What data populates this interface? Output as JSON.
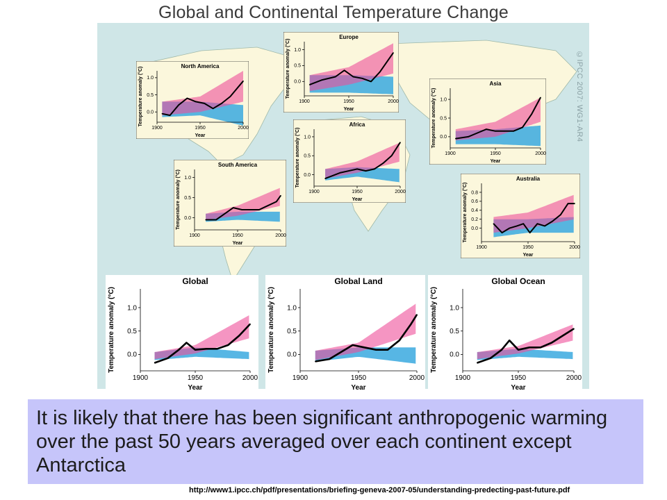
{
  "page": {
    "title": "Global and Continental Temperature Change",
    "credit": "©IPCC 2007: WG1-AR4",
    "statement": "It is likely that there has been significant anthropogenic warming over the past 50 years averaged over each continent except Antarctica",
    "source_url": "http://www1.ipcc.ch/pdf/presentations/briefing-geneva-2007-05/understanding-predecting-past-future.pdf"
  },
  "colors": {
    "map_background": "#cfe6e7",
    "land": "#fbf7dc",
    "natural_forcing_band": "#3aa9df",
    "combined_forcing_band": "#ee4f9a",
    "overlap_band": "#8a5fb5",
    "observations": "#000000",
    "statement_background": "#c6c5fa"
  },
  "chart_data": [
    {
      "id": "north_america",
      "type": "line",
      "title": "North America",
      "xlabel": "Year",
      "ylabel": "Temperature anomaly (°C)",
      "xlim": [
        1900,
        2000
      ],
      "ylim": [
        -0.3,
        1.2
      ],
      "xticks": [
        1900,
        1950,
        2000
      ],
      "yticks": [
        0.0,
        0.5,
        1.0
      ],
      "series": [
        {
          "x": [
            1906,
            1915,
            1925,
            1935,
            1945,
            1955,
            1965,
            1975,
            1985,
            1995,
            2000
          ],
          "y": [
            -0.05,
            -0.1,
            0.2,
            0.4,
            0.3,
            0.25,
            0.1,
            0.25,
            0.45,
            0.75,
            0.9
          ]
        }
      ],
      "bands": {
        "natural": {
          "x": [
            1906,
            1950,
            2000
          ],
          "lo": [
            -0.15,
            -0.1,
            -0.4
          ],
          "hi": [
            0.3,
            0.3,
            0.2
          ]
        },
        "combined": {
          "x": [
            1906,
            1950,
            2000
          ],
          "lo": [
            -0.1,
            0.0,
            0.3
          ],
          "hi": [
            0.3,
            0.45,
            1.2
          ]
        }
      }
    },
    {
      "id": "europe",
      "type": "line",
      "title": "Europe",
      "xlabel": "Year",
      "ylabel": "Temperature anomaly (°C)",
      "xlim": [
        1900,
        2000
      ],
      "ylim": [
        -0.45,
        1.25
      ],
      "xticks": [
        1900,
        1950,
        2000
      ],
      "yticks": [
        0.0,
        0.5,
        1.0
      ],
      "series": [
        {
          "x": [
            1906,
            1920,
            1935,
            1945,
            1955,
            1965,
            1975,
            1985,
            1995,
            2000
          ],
          "y": [
            -0.1,
            0.05,
            0.15,
            0.35,
            0.15,
            0.1,
            0.0,
            0.3,
            0.7,
            0.9
          ]
        }
      ],
      "bands": {
        "natural": {
          "x": [
            1906,
            1950,
            2000
          ],
          "lo": [
            -0.35,
            -0.35,
            -0.4
          ],
          "hi": [
            0.2,
            0.2,
            0.15
          ]
        },
        "combined": {
          "x": [
            1906,
            1950,
            2000
          ],
          "lo": [
            -0.3,
            -0.1,
            0.25
          ],
          "hi": [
            0.2,
            0.45,
            1.2
          ]
        }
      }
    },
    {
      "id": "asia",
      "type": "line",
      "title": "Asia",
      "xlabel": "Year",
      "ylabel": "Temperature anomaly (°C)",
      "xlim": [
        1900,
        2000
      ],
      "ylim": [
        -0.3,
        1.3
      ],
      "xticks": [
        1900,
        1950,
        2000
      ],
      "yticks": [
        0.0,
        0.5,
        1.0
      ],
      "series": [
        {
          "x": [
            1906,
            1920,
            1930,
            1940,
            1950,
            1960,
            1970,
            1980,
            1990,
            2000
          ],
          "y": [
            -0.05,
            0.0,
            0.1,
            0.2,
            0.15,
            0.15,
            0.15,
            0.25,
            0.6,
            1.05
          ]
        }
      ],
      "bands": {
        "natural": {
          "x": [
            1906,
            1950,
            2000
          ],
          "lo": [
            -0.2,
            -0.2,
            -0.25
          ],
          "hi": [
            0.15,
            0.2,
            0.3
          ]
        },
        "combined": {
          "x": [
            1906,
            1950,
            2000
          ],
          "lo": [
            -0.1,
            0.0,
            0.4
          ],
          "hi": [
            0.2,
            0.4,
            1.05
          ]
        }
      }
    },
    {
      "id": "africa",
      "type": "line",
      "title": "Africa",
      "xlabel": "Year",
      "ylabel": "Temperature anomaly (°C)",
      "xlim": [
        1900,
        2000
      ],
      "ylim": [
        -0.3,
        1.2
      ],
      "xticks": [
        1900,
        1950,
        2000
      ],
      "yticks": [
        0.0,
        0.5,
        1.0
      ],
      "series": [
        {
          "x": [
            1913,
            1930,
            1950,
            1960,
            1970,
            1980,
            1990,
            2000
          ],
          "y": [
            -0.1,
            0.05,
            0.15,
            0.1,
            0.15,
            0.3,
            0.5,
            0.85
          ]
        }
      ],
      "bands": {
        "natural": {
          "x": [
            1913,
            1950,
            2000
          ],
          "lo": [
            -0.15,
            -0.05,
            -0.2
          ],
          "hi": [
            0.15,
            0.2,
            0.15
          ]
        },
        "combined": {
          "x": [
            1913,
            1950,
            2000
          ],
          "lo": [
            -0.1,
            0.05,
            0.35
          ],
          "hi": [
            0.15,
            0.35,
            0.85
          ]
        }
      }
    },
    {
      "id": "south_america",
      "type": "line",
      "title": "South America",
      "xlabel": "Year",
      "ylabel": "Temperature anomaly (°C)",
      "xlim": [
        1900,
        2000
      ],
      "ylim": [
        -0.3,
        1.2
      ],
      "xticks": [
        1900,
        1950,
        2000
      ],
      "yticks": [
        0.0,
        0.5,
        1.0
      ],
      "series": [
        {
          "x": [
            1913,
            1925,
            1935,
            1945,
            1955,
            1965,
            1975,
            1985,
            1995,
            2000
          ],
          "y": [
            -0.05,
            -0.05,
            0.1,
            0.25,
            0.2,
            0.2,
            0.2,
            0.3,
            0.4,
            0.55
          ]
        }
      ],
      "bands": {
        "natural": {
          "x": [
            1913,
            1950,
            2000
          ],
          "lo": [
            -0.1,
            -0.05,
            -0.1
          ],
          "hi": [
            0.1,
            0.15,
            0.15
          ]
        },
        "combined": {
          "x": [
            1913,
            1950,
            2000
          ],
          "lo": [
            -0.05,
            0.05,
            0.3
          ],
          "hi": [
            0.1,
            0.3,
            0.75
          ]
        }
      }
    },
    {
      "id": "australia",
      "type": "line",
      "title": "Australia",
      "xlabel": "Year",
      "ylabel": "Temperature anomaly (°C)",
      "xlim": [
        1900,
        2000
      ],
      "ylim": [
        -0.3,
        1.0
      ],
      "xticks": [
        1900,
        1950,
        2000
      ],
      "yticks": [
        0.0,
        0.2,
        0.4,
        0.6,
        0.8
      ],
      "series": [
        {
          "x": [
            1913,
            1922,
            1930,
            1938,
            1945,
            1952,
            1960,
            1968,
            1976,
            1985,
            1993,
            2000
          ],
          "y": [
            0.1,
            -0.1,
            0.0,
            0.05,
            0.1,
            -0.1,
            0.1,
            0.05,
            0.15,
            0.3,
            0.55,
            0.55
          ]
        }
      ],
      "bands": {
        "natural": {
          "x": [
            1913,
            1950,
            2000
          ],
          "lo": [
            -0.2,
            -0.1,
            -0.1
          ],
          "hi": [
            0.2,
            0.2,
            0.25
          ]
        },
        "combined": {
          "x": [
            1913,
            1950,
            2000
          ],
          "lo": [
            -0.1,
            0.0,
            0.2
          ],
          "hi": [
            0.25,
            0.35,
            0.75
          ]
        }
      }
    },
    {
      "id": "global",
      "type": "line",
      "title": "Global",
      "xlabel": "Year",
      "ylabel": "Temperature anomaly (°C)",
      "xlim": [
        1900,
        2000
      ],
      "ylim": [
        -0.35,
        1.4
      ],
      "xticks": [
        1900,
        1950,
        2000
      ],
      "yticks": [
        0.0,
        0.5,
        1.0
      ],
      "series": [
        {
          "x": [
            1913,
            1925,
            1935,
            1942,
            1950,
            1960,
            1970,
            1980,
            1990,
            2000
          ],
          "y": [
            -0.18,
            -0.08,
            0.1,
            0.25,
            0.1,
            0.12,
            0.12,
            0.2,
            0.4,
            0.65
          ]
        }
      ],
      "bands": {
        "natural": {
          "x": [
            1913,
            1950,
            2000
          ],
          "lo": [
            -0.12,
            -0.05,
            -0.1
          ],
          "hi": [
            0.05,
            0.15,
            0.05
          ]
        },
        "combined": {
          "x": [
            1913,
            1950,
            2000
          ],
          "lo": [
            -0.1,
            0.02,
            0.35
          ],
          "hi": [
            0.05,
            0.2,
            0.85
          ]
        }
      }
    },
    {
      "id": "global_land",
      "type": "line",
      "title": "Global Land",
      "xlabel": "Year",
      "ylabel": "Temperature anomaly (°C)",
      "xlim": [
        1900,
        2000
      ],
      "ylim": [
        -0.35,
        1.4
      ],
      "xticks": [
        1900,
        1950,
        2000
      ],
      "yticks": [
        0.0,
        0.5,
        1.0
      ],
      "series": [
        {
          "x": [
            1913,
            1925,
            1935,
            1945,
            1955,
            1965,
            1975,
            1985,
            1995,
            2000
          ],
          "y": [
            -0.15,
            -0.1,
            0.05,
            0.2,
            0.15,
            0.1,
            0.1,
            0.3,
            0.65,
            0.85
          ]
        }
      ],
      "bands": {
        "natural": {
          "x": [
            1913,
            1950,
            2000
          ],
          "lo": [
            -0.15,
            -0.05,
            -0.2
          ],
          "hi": [
            0.08,
            0.15,
            0.15
          ]
        },
        "combined": {
          "x": [
            1913,
            1950,
            2000
          ],
          "lo": [
            -0.12,
            0.05,
            0.45
          ],
          "hi": [
            0.08,
            0.25,
            1.1
          ]
        }
      }
    },
    {
      "id": "global_ocean",
      "type": "line",
      "title": "Global Ocean",
      "xlabel": "Year",
      "ylabel": "Temperature anomaly (°C)",
      "xlim": [
        1900,
        2000
      ],
      "ylim": [
        -0.35,
        1.4
      ],
      "xticks": [
        1900,
        1950,
        2000
      ],
      "yticks": [
        0.0,
        0.5,
        1.0
      ],
      "series": [
        {
          "x": [
            1913,
            1925,
            1935,
            1942,
            1950,
            1960,
            1970,
            1980,
            1990,
            2000
          ],
          "y": [
            -0.18,
            -0.08,
            0.1,
            0.3,
            0.1,
            0.15,
            0.15,
            0.25,
            0.4,
            0.55
          ]
        }
      ],
      "bands": {
        "natural": {
          "x": [
            1913,
            1950,
            2000
          ],
          "lo": [
            -0.12,
            -0.05,
            -0.1
          ],
          "hi": [
            0.05,
            0.12,
            0.05
          ]
        },
        "combined": {
          "x": [
            1913,
            1950,
            2000
          ],
          "lo": [
            -0.1,
            0.02,
            0.3
          ],
          "hi": [
            0.05,
            0.18,
            0.65
          ]
        }
      }
    }
  ]
}
